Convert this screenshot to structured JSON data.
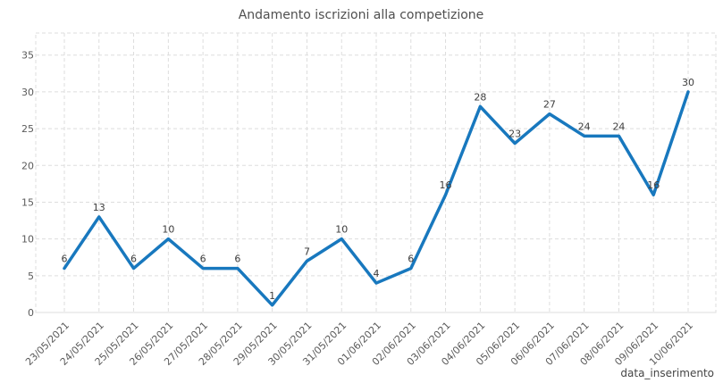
{
  "chart_data": {
    "type": "line",
    "title": "Andamento iscrizioni alla competizione",
    "xlabel": "data_inserimento",
    "ylabel": "",
    "x": [
      "23/05/2021",
      "24/05/2021",
      "25/05/2021",
      "26/05/2021",
      "27/05/2021",
      "28/05/2021",
      "29/05/2021",
      "30/05/2021",
      "31/05/2021",
      "01/06/2021",
      "02/06/2021",
      "03/06/2021",
      "04/06/2021",
      "05/06/2021",
      "06/06/2021",
      "07/06/2021",
      "08/06/2021",
      "09/06/2021",
      "10/06/2021"
    ],
    "values": [
      6,
      13,
      6,
      10,
      6,
      6,
      1,
      7,
      10,
      4,
      6,
      16,
      28,
      23,
      27,
      24,
      24,
      16,
      30
    ],
    "yticks": [
      0,
      5,
      10,
      15,
      20,
      25,
      30,
      35
    ],
    "ylim": [
      0,
      38
    ],
    "grid": true,
    "grid_style": "dashed",
    "legend": "none",
    "colors": {
      "line": "#1878be",
      "grid": "#dddddd",
      "title": "#4f4f4f",
      "ticks": "#5a5a5a",
      "point_labels": "#3d3d3d",
      "axis_label": "#454545",
      "background": "#ffffff"
    }
  }
}
